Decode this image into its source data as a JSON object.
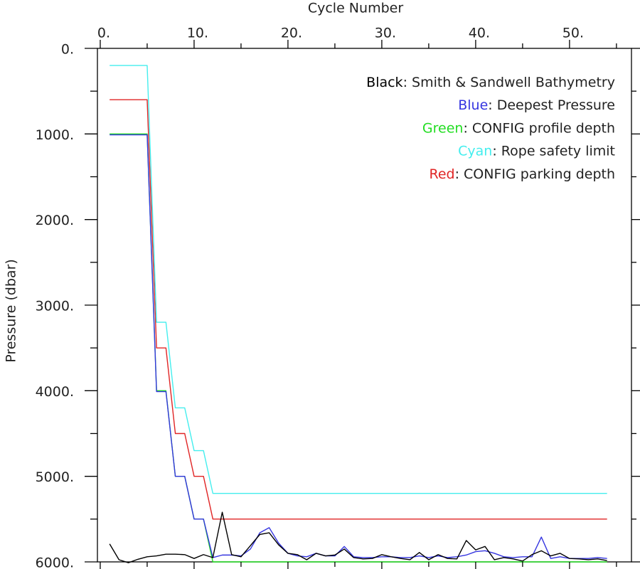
{
  "chart_data": {
    "type": "line",
    "x_label": "Cycle Number",
    "y_label": "Pressure (dbar)",
    "xlim": [
      -0.3,
      56.6
    ],
    "ylim": [
      0,
      6000
    ],
    "y_inverted": true,
    "xticks": [
      {
        "value": 0,
        "label": "0."
      },
      {
        "value": 10,
        "label": "10."
      },
      {
        "value": 20,
        "label": "20."
      },
      {
        "value": 30,
        "label": "30."
      },
      {
        "value": 40,
        "label": "40."
      },
      {
        "value": 50,
        "label": "50."
      }
    ],
    "xminorticks": [
      5,
      15,
      25,
      35,
      45,
      55
    ],
    "yticks": [
      {
        "value": 0,
        "label": "0."
      },
      {
        "value": 1000,
        "label": "1000."
      },
      {
        "value": 2000,
        "label": "2000."
      },
      {
        "value": 3000,
        "label": "3000."
      },
      {
        "value": 4000,
        "label": "4000."
      },
      {
        "value": 5000,
        "label": "5000."
      },
      {
        "value": 6000,
        "label": "6000."
      }
    ],
    "yminorticks": [
      500,
      1500,
      2500,
      3500,
      4500,
      5500
    ],
    "x": [
      1,
      2,
      3,
      4,
      5,
      6,
      7,
      8,
      9,
      10,
      11,
      12,
      13,
      14,
      15,
      16,
      17,
      18,
      19,
      20,
      21,
      22,
      23,
      24,
      25,
      26,
      27,
      28,
      29,
      30,
      31,
      32,
      33,
      34,
      35,
      36,
      37,
      38,
      39,
      40,
      41,
      42,
      43,
      44,
      45,
      46,
      47,
      48,
      49,
      50,
      51,
      52,
      53,
      54
    ],
    "series": [
      {
        "key": "Black",
        "name": ": Smith & Sandwell Bathymetry",
        "color": "#000000",
        "values": [
          5790,
          5975,
          6010,
          5970,
          5940,
          5930,
          5910,
          5910,
          5915,
          5960,
          5915,
          5950,
          5420,
          5915,
          5940,
          5810,
          5680,
          5660,
          5800,
          5900,
          5915,
          5975,
          5900,
          5930,
          5920,
          5850,
          5950,
          5965,
          5960,
          5915,
          5940,
          5960,
          5975,
          5890,
          5975,
          5915,
          5960,
          5965,
          5750,
          5860,
          5820,
          5975,
          5950,
          5965,
          5990,
          5915,
          5870,
          5930,
          5900,
          5960,
          5965,
          5975,
          5965,
          5985
        ]
      },
      {
        "key": "Blue",
        "name": ": Deepest Pressure",
        "color": "#3535e0",
        "values": [
          1010,
          1010,
          1010,
          1010,
          1010,
          4010,
          4010,
          5000,
          5000,
          5500,
          5500,
          5950,
          5920,
          5920,
          5930,
          5850,
          5660,
          5600,
          5780,
          5900,
          5930,
          5940,
          5900,
          5930,
          5930,
          5820,
          5940,
          5950,
          5950,
          5940,
          5940,
          5950,
          5950,
          5930,
          5950,
          5930,
          5950,
          5940,
          5920,
          5880,
          5870,
          5900,
          5940,
          5950,
          5940,
          5940,
          5710,
          5960,
          5940,
          5960,
          5960,
          5960,
          5950,
          5960
        ]
      },
      {
        "key": "Green",
        "name": ": CONFIG profile depth",
        "color": "#22dd22",
        "values": [
          1000,
          1000,
          1000,
          1000,
          1000,
          4000,
          4000,
          5000,
          5000,
          5500,
          5500,
          6000,
          6000,
          6000,
          6000,
          6000,
          6000,
          6000,
          6000,
          6000,
          6000,
          6000,
          6000,
          6000,
          6000,
          6000,
          6000,
          6000,
          6000,
          6000,
          6000,
          6000,
          6000,
          6000,
          6000,
          6000,
          6000,
          6000,
          6000,
          6000,
          6000,
          6000,
          6000,
          6000,
          6000,
          6000,
          6000,
          6000,
          6000,
          6000,
          6000,
          6000,
          6000,
          6000
        ]
      },
      {
        "key": "Cyan",
        "name": ": Rope safety limit",
        "color": "#44eeee",
        "values": [
          200,
          200,
          200,
          200,
          200,
          3200,
          3200,
          4200,
          4200,
          4700,
          4700,
          5200,
          5200,
          5200,
          5200,
          5200,
          5200,
          5200,
          5200,
          5200,
          5200,
          5200,
          5200,
          5200,
          5200,
          5200,
          5200,
          5200,
          5200,
          5200,
          5200,
          5200,
          5200,
          5200,
          5200,
          5200,
          5200,
          5200,
          5200,
          5200,
          5200,
          5200,
          5200,
          5200,
          5200,
          5200,
          5200,
          5200,
          5200,
          5200,
          5200,
          5200,
          5200,
          5200
        ]
      },
      {
        "key": "Red",
        "name": ": CONFIG parking depth",
        "color": "#e02525",
        "values": [
          600,
          600,
          600,
          600,
          600,
          3500,
          3500,
          4500,
          4500,
          5000,
          5000,
          5500,
          5500,
          5500,
          5500,
          5500,
          5500,
          5500,
          5500,
          5500,
          5500,
          5500,
          5500,
          5500,
          5500,
          5500,
          5500,
          5500,
          5500,
          5500,
          5500,
          5500,
          5500,
          5500,
          5500,
          5500,
          5500,
          5500,
          5500,
          5500,
          5500,
          5500,
          5500,
          5500,
          5500,
          5500,
          5500,
          5500,
          5500,
          5500,
          5500,
          5500,
          5500,
          5500
        ]
      }
    ]
  }
}
